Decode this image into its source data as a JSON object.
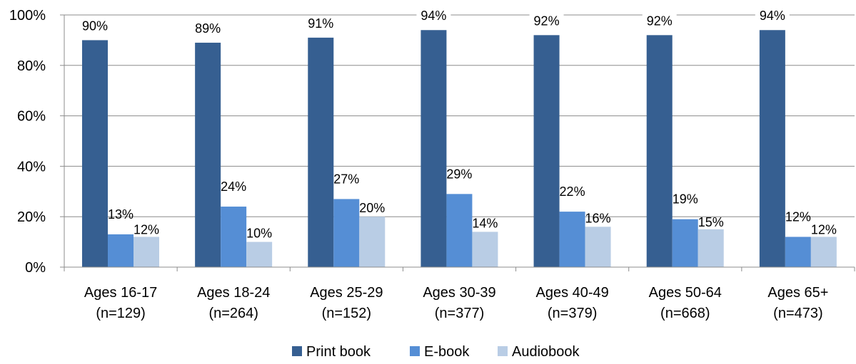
{
  "chart_data": {
    "type": "bar",
    "categories": [
      [
        "Ages 16-17",
        "(n=129)"
      ],
      [
        "Ages 18-24",
        "(n=264)"
      ],
      [
        "Ages 25-29",
        "(n=152)"
      ],
      [
        "Ages 30-39",
        "(n=377)"
      ],
      [
        "Ages 40-49",
        "(n=379)"
      ],
      [
        "Ages 50-64",
        "(n=668)"
      ],
      [
        "Ages 65+",
        "(n=473)"
      ]
    ],
    "series": [
      {
        "name": "Print book",
        "color": "#365F91",
        "values": [
          90,
          89,
          91,
          94,
          92,
          92,
          94
        ]
      },
      {
        "name": "E-book",
        "color": "#558ED5",
        "values": [
          13,
          24,
          27,
          29,
          22,
          19,
          12
        ]
      },
      {
        "name": "Audiobook",
        "color": "#B9CDE5",
        "values": [
          12,
          10,
          20,
          14,
          16,
          15,
          12
        ]
      }
    ],
    "ylim": [
      0,
      100
    ],
    "yticks": [
      0,
      20,
      40,
      60,
      80,
      100
    ],
    "ytick_labels": [
      "0%",
      "20%",
      "40%",
      "60%",
      "80%",
      "100%"
    ],
    "value_suffix": "%",
    "grid": true,
    "legend_position": "bottom"
  }
}
